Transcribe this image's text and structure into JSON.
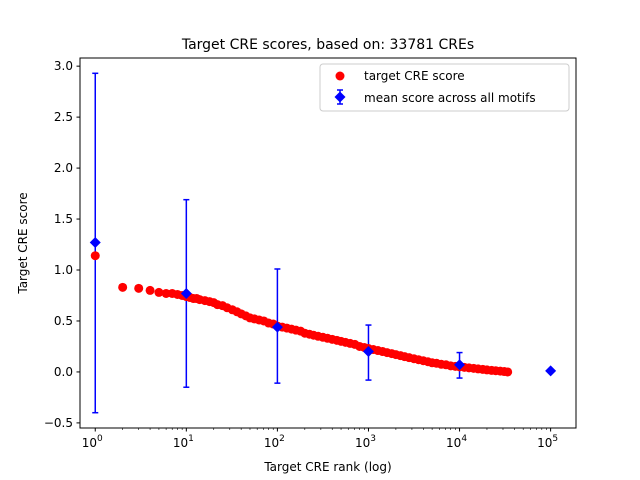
{
  "chart_data": {
    "type": "scatter",
    "title": "Target CRE scores, based on: 33781 CREs",
    "xlabel": "Target CRE rank (log)",
    "ylabel": "Target CRE score",
    "xscale": "log",
    "xlim": [
      0.68,
      190000
    ],
    "ylim": [
      -0.55,
      3.08
    ],
    "x_ticks": [
      {
        "value": 1,
        "base": "10",
        "exp": "0"
      },
      {
        "value": 10,
        "base": "10",
        "exp": "1"
      },
      {
        "value": 100,
        "base": "10",
        "exp": "2"
      },
      {
        "value": 1000,
        "base": "10",
        "exp": "3"
      },
      {
        "value": 10000,
        "base": "10",
        "exp": "4"
      },
      {
        "value": 100000,
        "base": "10",
        "exp": "5"
      }
    ],
    "y_ticks": [
      {
        "value": -0.5,
        "label": "−0.5"
      },
      {
        "value": 0.0,
        "label": "0.0"
      },
      {
        "value": 0.5,
        "label": "0.5"
      },
      {
        "value": 1.0,
        "label": "1.0"
      },
      {
        "value": 1.5,
        "label": "1.5"
      },
      {
        "value": 2.0,
        "label": "2.0"
      },
      {
        "value": 2.5,
        "label": "2.5"
      },
      {
        "value": 3.0,
        "label": "3.0"
      }
    ],
    "grid": false,
    "legend_position": "upper right",
    "series": [
      {
        "name": "target CRE score",
        "marker": "circle",
        "color": "#ff0000",
        "x": [
          1,
          2,
          3,
          4,
          5,
          6,
          7,
          8,
          9,
          10,
          11,
          12,
          13,
          14,
          16,
          18,
          20,
          22,
          25,
          28,
          32,
          36,
          40,
          45,
          50,
          56,
          63,
          71,
          80,
          90,
          100,
          113,
          127,
          143,
          160,
          180,
          200,
          225,
          250,
          280,
          316,
          355,
          400,
          450,
          500,
          560,
          630,
          710,
          800,
          900,
          1000,
          1130,
          1270,
          1430,
          1600,
          1800,
          2000,
          2250,
          2500,
          2800,
          3160,
          3550,
          4000,
          4500,
          5000,
          5600,
          6300,
          7100,
          8000,
          9000,
          10000,
          11300,
          12700,
          14300,
          16000,
          18000,
          20000,
          22500,
          25000,
          28000,
          31000,
          33781
        ],
        "y": [
          1.14,
          0.83,
          0.82,
          0.8,
          0.78,
          0.77,
          0.77,
          0.76,
          0.75,
          0.74,
          0.73,
          0.72,
          0.72,
          0.71,
          0.7,
          0.69,
          0.68,
          0.66,
          0.65,
          0.63,
          0.61,
          0.59,
          0.57,
          0.55,
          0.53,
          0.52,
          0.51,
          0.5,
          0.48,
          0.47,
          0.45,
          0.44,
          0.43,
          0.42,
          0.41,
          0.4,
          0.38,
          0.37,
          0.36,
          0.35,
          0.34,
          0.33,
          0.32,
          0.31,
          0.3,
          0.29,
          0.28,
          0.27,
          0.25,
          0.24,
          0.23,
          0.22,
          0.21,
          0.2,
          0.19,
          0.18,
          0.17,
          0.16,
          0.15,
          0.14,
          0.13,
          0.12,
          0.11,
          0.1,
          0.09,
          0.085,
          0.075,
          0.07,
          0.06,
          0.055,
          0.05,
          0.045,
          0.04,
          0.035,
          0.03,
          0.025,
          0.02,
          0.015,
          0.012,
          0.008,
          0.004,
          0.0
        ]
      },
      {
        "name": "mean score across all motifs",
        "marker": "diamond",
        "color": "#0000ff",
        "x": [
          1,
          10,
          100,
          1000,
          10000,
          100000
        ],
        "y": [
          1.27,
          0.77,
          0.44,
          0.2,
          0.07,
          0.01
        ],
        "yerr_low": [
          -0.4,
          -0.15,
          -0.11,
          -0.08,
          -0.06,
          null
        ],
        "yerr_high": [
          2.93,
          1.69,
          1.01,
          0.46,
          0.19,
          null
        ]
      }
    ]
  }
}
